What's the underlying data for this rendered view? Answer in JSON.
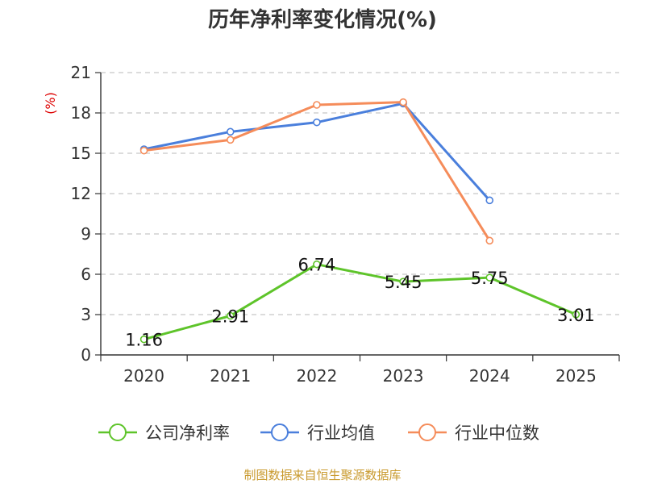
{
  "chart_data": {
    "type": "line",
    "title": "历年净利率变化情况(%)",
    "ylabel": "(%)",
    "xlabel": "",
    "categories": [
      "2020",
      "2021",
      "2022",
      "2023",
      "2024",
      "2025"
    ],
    "ylim": [
      0,
      21
    ],
    "yticks": [
      0,
      3,
      6,
      9,
      12,
      15,
      18,
      21
    ],
    "grid": "horizontal-dashed",
    "legend_position": "bottom",
    "series": [
      {
        "name": "公司净利率",
        "color": "#5ec42a",
        "values": [
          1.16,
          2.91,
          6.74,
          5.45,
          5.75,
          3.01
        ],
        "labels": [
          "1.16",
          "2.91",
          "6.74",
          "5.45",
          "5.75",
          "3.01"
        ]
      },
      {
        "name": "行业均值",
        "color": "#4a7fdc",
        "values": [
          15.3,
          16.6,
          17.3,
          18.7,
          11.5,
          null
        ]
      },
      {
        "name": "行业中位数",
        "color": "#f58c5a",
        "values": [
          15.2,
          16.0,
          18.6,
          18.8,
          8.5,
          null
        ]
      }
    ]
  },
  "source": "制图数据来自恒生聚源数据库"
}
